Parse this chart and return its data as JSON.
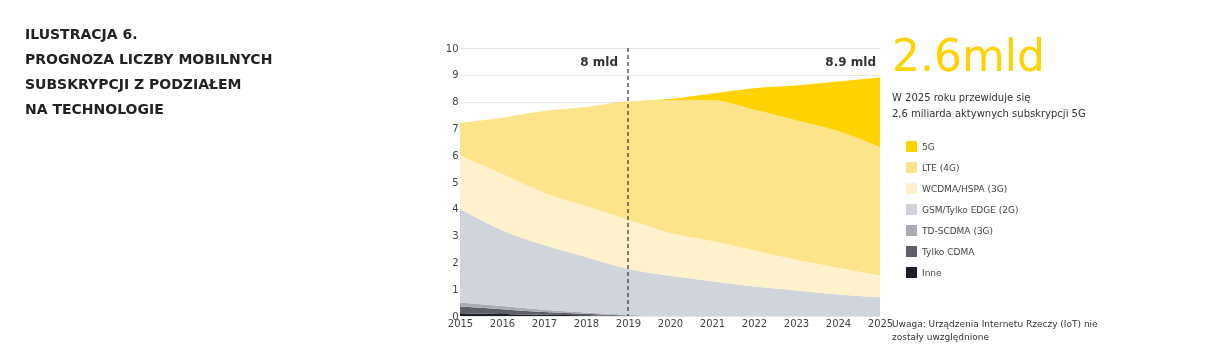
{
  "chart_data": {
    "type": "area",
    "stacked": true,
    "title": "ILUSTRACJA 6.",
    "subtitle": "PROGNOZA LICZBY MOBILNYCH\nSUBSKRYPCJI Z PODZIAŁEM\nNA TECHNOLOGIE",
    "x": [
      2015,
      2016,
      2017,
      2018,
      2019,
      2020,
      2021,
      2022,
      2023,
      2024,
      2025
    ],
    "series": [
      {
        "name": "Inne",
        "color": "#1a1f2b",
        "values": [
          0.1,
          0.07,
          0.05,
          0.03,
          0,
          0,
          0,
          0,
          0,
          0,
          0
        ]
      },
      {
        "name": "Tylko CDMA",
        "color": "#5c6066",
        "values": [
          0.25,
          0.18,
          0.1,
          0.05,
          0.02,
          0,
          0,
          0,
          0,
          0,
          0
        ]
      },
      {
        "name": "TD-SCDMA (3G)",
        "color": "#a9adb3",
        "values": [
          0.15,
          0.12,
          0.08,
          0.05,
          0.02,
          0,
          0,
          0,
          0,
          0,
          0
        ]
      },
      {
        "name": "GSM/Tylko EDGE (2G)",
        "color": "#d0d5dc",
        "values": [
          3.5,
          2.83,
          2.42,
          2.07,
          1.71,
          1.5,
          1.3,
          1.1,
          0.95,
          0.8,
          0.7
        ]
      },
      {
        "name": "WCDMA/HSPA (3G)",
        "color": "#fff1cc",
        "values": [
          2.0,
          2.1,
          1.95,
          1.9,
          1.85,
          1.6,
          1.5,
          1.35,
          1.15,
          1.0,
          0.8
        ]
      },
      {
        "name": "LTE (4G)",
        "color": "#fde38a",
        "values": [
          1.2,
          2.1,
          3.05,
          3.7,
          4.4,
          4.95,
          5.25,
          5.25,
          5.2,
          5.1,
          4.8
        ]
      },
      {
        "name": "5G",
        "color": "#ffd200",
        "values": [
          0,
          0,
          0,
          0,
          0,
          0.05,
          0.25,
          0.8,
          1.3,
          1.85,
          2.6
        ]
      }
    ],
    "xlim": [
      2015,
      2025
    ],
    "xticks": [
      2015,
      2016,
      2017,
      2018,
      2019,
      2020,
      2021,
      2022,
      2023,
      2024,
      2025
    ],
    "ylim": [
      0,
      10
    ],
    "yticks": [
      0,
      1,
      2,
      3,
      4,
      5,
      6,
      7,
      8,
      9,
      10
    ],
    "grid": "y",
    "legend": "right",
    "ref_lines": [
      {
        "axis": "x",
        "value": 2019,
        "line_style": "dashed",
        "color": "#333333"
      }
    ],
    "annotations": [
      "8 mld",
      "8.9 mld",
      "2.6mld",
      "W 2025 roku przewiduje się\n2,6 miliarda aktywnych subskrypcji 5G",
      "Uwaga: Urządzenia Internetu Rzeczy (IoT) nie\nzostały uwzględnione"
    ]
  }
}
